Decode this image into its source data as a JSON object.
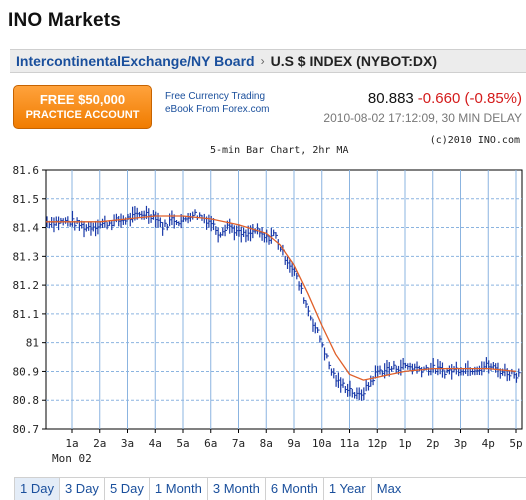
{
  "header": {
    "title": "INO Markets"
  },
  "breadcrumb": {
    "exchange": "IntercontinentalExchange/NY Board",
    "separator": "›",
    "current": "U.S $ INDEX (NYBOT:DX)"
  },
  "promo": {
    "line1": "FREE $50,000",
    "line2": "PRACTICE ACCOUNT"
  },
  "ebook": {
    "line1": "Free Currency Trading",
    "line2": "eBook From Forex.com"
  },
  "quote": {
    "last": "80.883",
    "change": "-0.660 (-0.85%)",
    "timestamp": "2010-08-02 17:12:09, 30 MIN DELAY",
    "change_color": "#d41b1b"
  },
  "chart_header": {
    "title": "5-min Bar Chart, 2hr MA",
    "copyright": "(c)2010 INO.com"
  },
  "chart_data": {
    "type": "line",
    "title": "5-min Bar Chart, 2hr MA",
    "ylim": [
      80.7,
      81.6
    ],
    "y_ticks": [
      "81.6",
      "81.5",
      "81.4",
      "81.3",
      "81.2",
      "81.1",
      "81",
      "80.9",
      "80.8",
      "80.7"
    ],
    "x_ticks": [
      "1a",
      "2a",
      "3a",
      "4a",
      "5a",
      "6a",
      "7a",
      "8a",
      "9a",
      "10a",
      "11a",
      "12p",
      "1p",
      "2p",
      "3p",
      "4p",
      "5p"
    ],
    "x_sublabel": "Mon 02",
    "grid": true,
    "series": [
      {
        "style": "bars",
        "color": "#1a3aa8",
        "x": [
          0.3,
          1,
          1.5,
          2,
          2.5,
          3,
          3.3,
          3.6,
          4,
          4.3,
          4.6,
          5,
          5.3,
          5.6,
          6,
          6.3,
          6.6,
          7,
          7.3,
          7.6,
          8,
          8.3,
          8.6,
          9,
          9.3,
          9.6,
          10,
          10.3,
          10.6,
          11,
          11.3,
          11.6,
          12,
          12.5,
          13,
          13.5,
          14,
          14.5,
          15,
          15.5,
          16,
          16.5,
          17
        ],
        "y": [
          81.42,
          81.42,
          81.4,
          81.41,
          81.42,
          81.43,
          81.44,
          81.45,
          81.44,
          81.4,
          81.43,
          81.42,
          81.45,
          81.44,
          81.42,
          81.38,
          81.41,
          81.38,
          81.37,
          81.39,
          81.36,
          81.38,
          81.31,
          81.25,
          81.17,
          81.09,
          81.0,
          80.91,
          80.86,
          80.84,
          80.81,
          80.84,
          80.9,
          80.91,
          80.92,
          80.91,
          80.91,
          80.9,
          80.91,
          80.91,
          80.92,
          80.9,
          80.89
        ]
      },
      {
        "name": "2hr MA",
        "style": "line",
        "color": "#e0602a",
        "x": [
          0,
          1,
          2,
          3,
          4,
          5,
          6,
          7,
          8,
          8.5,
          9,
          9.5,
          10,
          10.5,
          11,
          11.5,
          12,
          12.5,
          13,
          14,
          15,
          16,
          17
        ],
        "y": [
          81.42,
          81.42,
          81.42,
          81.43,
          81.44,
          81.44,
          81.43,
          81.41,
          81.38,
          81.34,
          81.27,
          81.17,
          81.06,
          80.96,
          80.89,
          80.87,
          80.88,
          80.89,
          80.9,
          80.91,
          80.91,
          80.91,
          80.9
        ]
      }
    ]
  },
  "range_tabs": [
    {
      "label": "1 Day",
      "active": true
    },
    {
      "label": "3 Day",
      "active": false
    },
    {
      "label": "5 Day",
      "active": false
    },
    {
      "label": "1 Month",
      "active": false
    },
    {
      "label": "3 Month",
      "active": false
    },
    {
      "label": "6 Month",
      "active": false
    },
    {
      "label": "1 Year",
      "active": false
    },
    {
      "label": "Max",
      "active": false
    }
  ]
}
